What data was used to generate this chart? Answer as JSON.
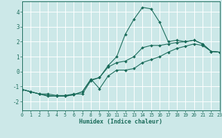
{
  "xlabel": "Humidex (Indice chaleur)",
  "xlim": [
    0,
    23
  ],
  "ylim": [
    -2.6,
    4.7
  ],
  "yticks": [
    -2,
    -1,
    0,
    1,
    2,
    3,
    4
  ],
  "xticks": [
    0,
    1,
    2,
    3,
    4,
    5,
    6,
    7,
    8,
    9,
    10,
    11,
    12,
    13,
    14,
    15,
    16,
    17,
    18,
    19,
    20,
    21,
    22,
    23
  ],
  "bg_color": "#cce8e8",
  "line_color": "#1a6b5a",
  "grid_color": "#ffffff",
  "x": [
    0,
    1,
    2,
    3,
    4,
    5,
    6,
    7,
    8,
    9,
    10,
    11,
    12,
    13,
    14,
    15,
    16,
    17,
    18,
    19,
    20,
    21,
    22,
    23
  ],
  "line_top": [
    -1.2,
    -1.35,
    -1.5,
    -1.5,
    -1.6,
    -1.6,
    -1.5,
    -1.5,
    -0.6,
    -0.4,
    0.4,
    1.0,
    2.5,
    3.5,
    4.3,
    4.2,
    3.3,
    2.0,
    2.1,
    2.0,
    2.1,
    1.85,
    1.35,
    1.3
  ],
  "line_mid": [
    -1.2,
    -1.35,
    -1.5,
    -1.6,
    -1.65,
    -1.65,
    -1.55,
    -1.35,
    -0.55,
    -0.4,
    0.3,
    0.6,
    0.7,
    1.0,
    1.6,
    1.75,
    1.75,
    1.85,
    1.95,
    2.0,
    2.1,
    1.85,
    1.35,
    1.3
  ],
  "line_bot": [
    -1.2,
    -1.35,
    -1.5,
    -1.65,
    -1.65,
    -1.65,
    -1.55,
    -1.35,
    -0.5,
    -1.15,
    -0.3,
    0.1,
    0.1,
    0.2,
    0.6,
    0.8,
    1.0,
    1.3,
    1.55,
    1.7,
    1.85,
    1.75,
    1.35,
    1.3
  ]
}
